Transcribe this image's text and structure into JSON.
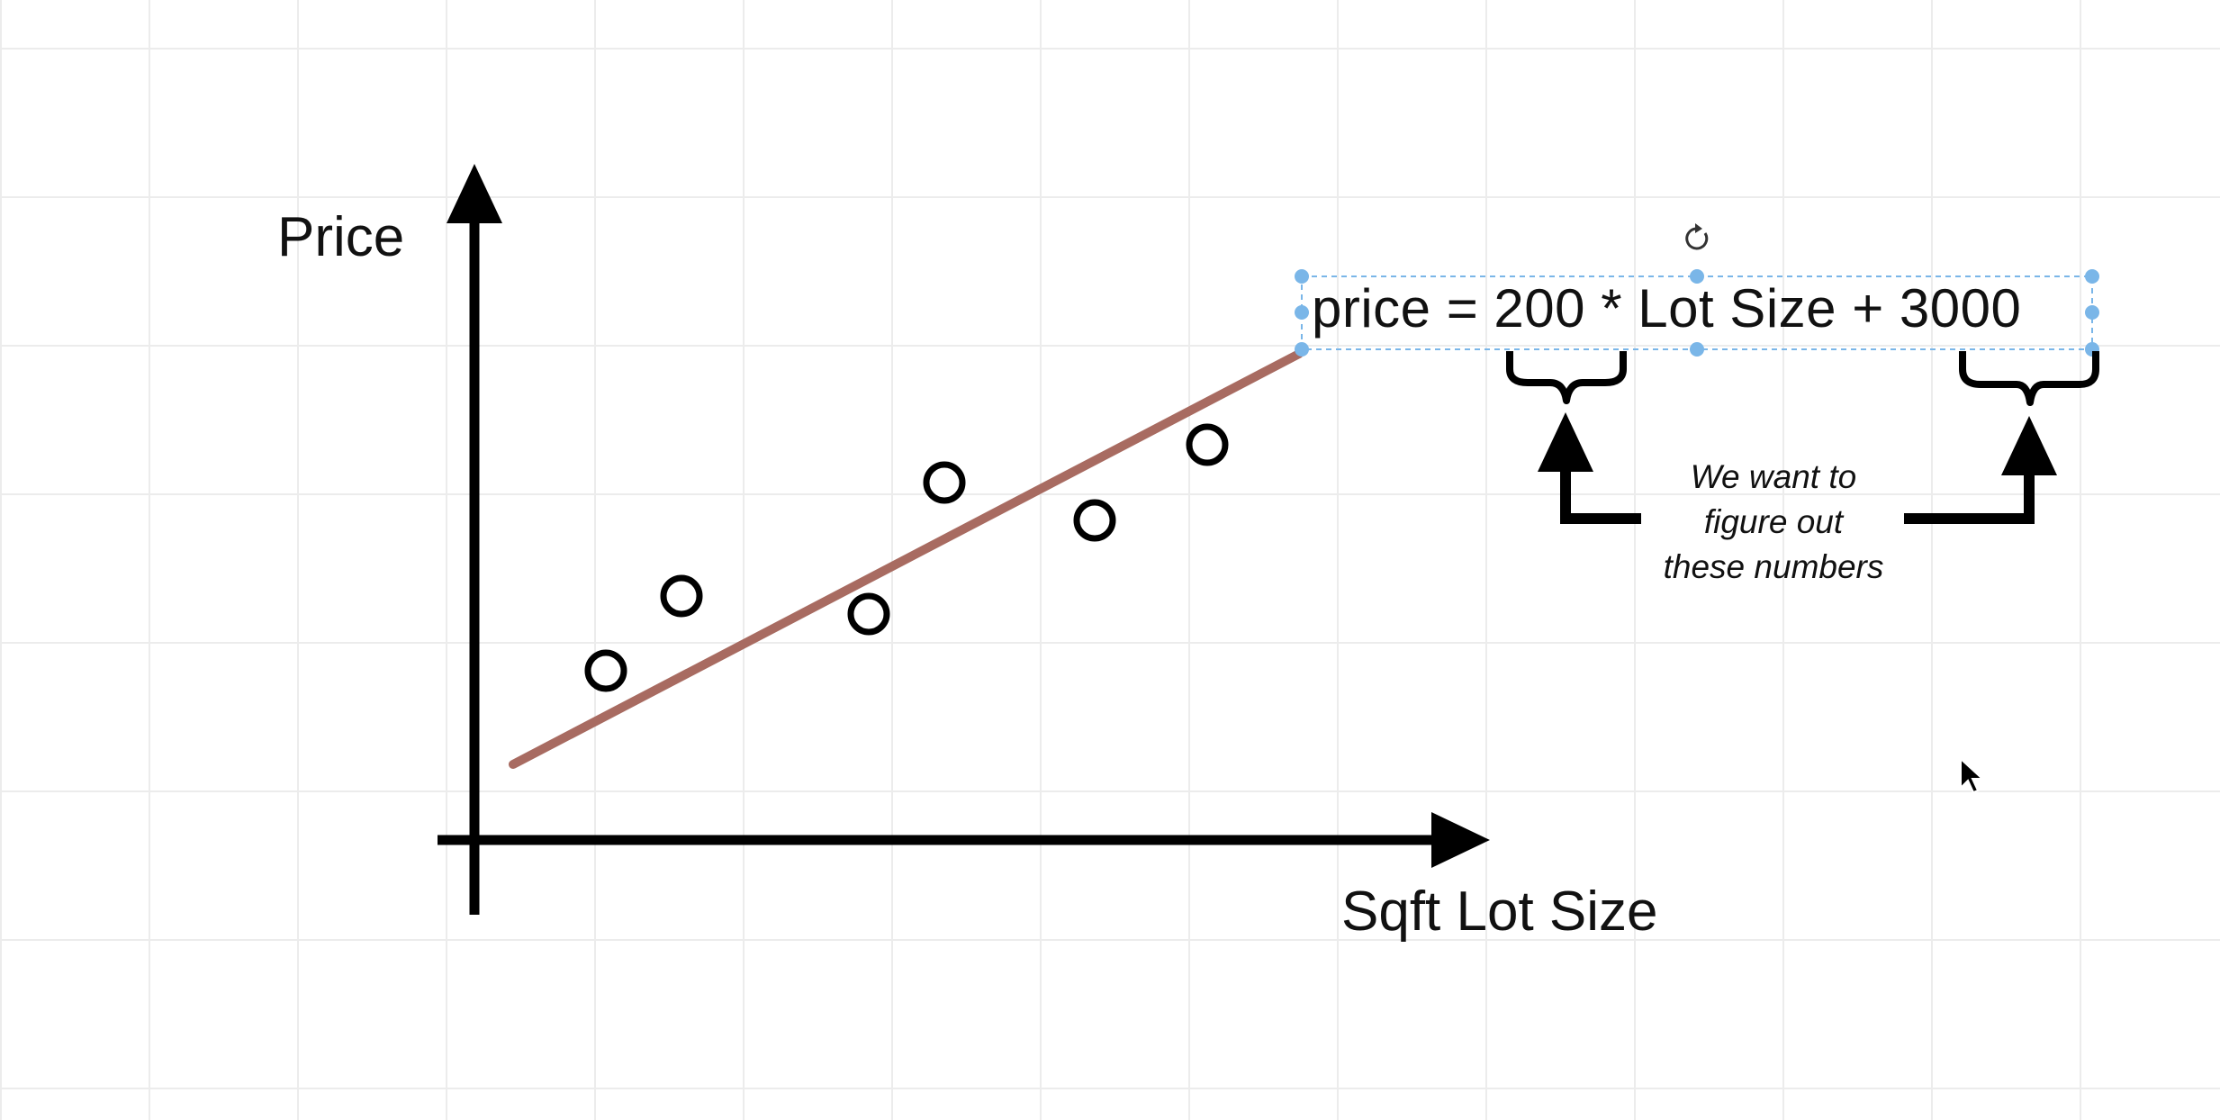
{
  "diagram": {
    "y_axis_label": "Price",
    "x_axis_label": "Sqft Lot Size",
    "equation": "price = 200 * Lot Size + 3000",
    "note_lines": [
      "We want to",
      "figure out",
      "these numbers"
    ]
  },
  "colors": {
    "fit_line": "#a86b61",
    "axis": "#000000",
    "selection": "#7ab6e8",
    "grid": "#ececec"
  },
  "icons": [
    "rotate-icon",
    "mouse-cursor-icon"
  ]
}
